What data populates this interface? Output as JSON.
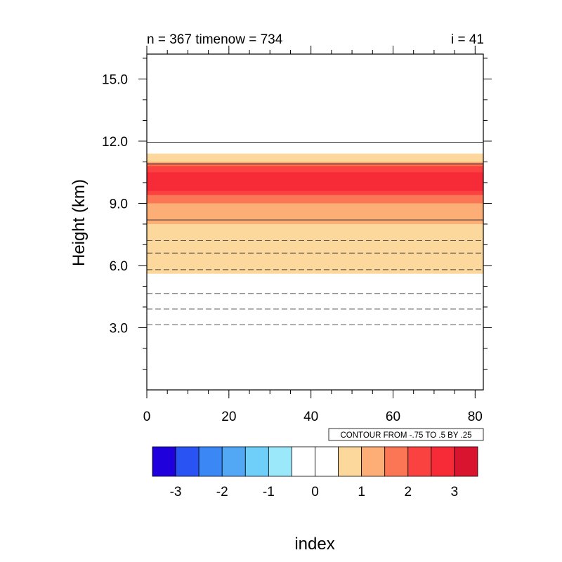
{
  "chart_data": {
    "type": "heatmap",
    "title_left": "n = 367 timenow = 734",
    "title_right": "i = 41",
    "ylabel": "Height (km)",
    "xlabel": "index",
    "xlim": [
      0,
      82
    ],
    "ylim": [
      0,
      16.2
    ],
    "xticks": [
      "0",
      "20",
      "40",
      "60",
      "80"
    ],
    "xtick_values": [
      0,
      20,
      40,
      60,
      80
    ],
    "yticks": [
      "3.0",
      "6.0",
      "9.0",
      "12.0",
      "15.0"
    ],
    "ytick_values": [
      3,
      6,
      9,
      12,
      15
    ],
    "contour_info": "CONTOUR FROM -.75 TO .5 BY .25",
    "fill_bands": [
      {
        "y0": 5.6,
        "y1": 11.4,
        "color": "#fdd89d"
      },
      {
        "y0": 8.0,
        "y1": 11.0,
        "color": "#fcae76"
      },
      {
        "y0": 9.0,
        "y1": 10.95,
        "color": "#fb7655"
      },
      {
        "y0": 9.4,
        "y1": 10.8,
        "color": "#fa4341"
      },
      {
        "y0": 9.6,
        "y1": 10.5,
        "color": "#f72a38"
      }
    ],
    "contours_solid": [
      8.2,
      10.9,
      11.95
    ],
    "contours_dashed": [
      3.15,
      3.9,
      4.65,
      5.8,
      6.6,
      7.2
    ],
    "colorbar": {
      "colors": [
        "#1f00dc",
        "#2a53f4",
        "#3b87f6",
        "#53a8f5",
        "#6fcff8",
        "#9be8fb",
        "#ffffff",
        "#ffffff",
        "#fdd89d",
        "#fcae76",
        "#fb7655",
        "#fa4341",
        "#f72a38",
        "#d9142f"
      ],
      "labels": [
        "-3",
        "-2",
        "-1",
        "0",
        "1",
        "2",
        "3"
      ]
    },
    "grid": false
  }
}
